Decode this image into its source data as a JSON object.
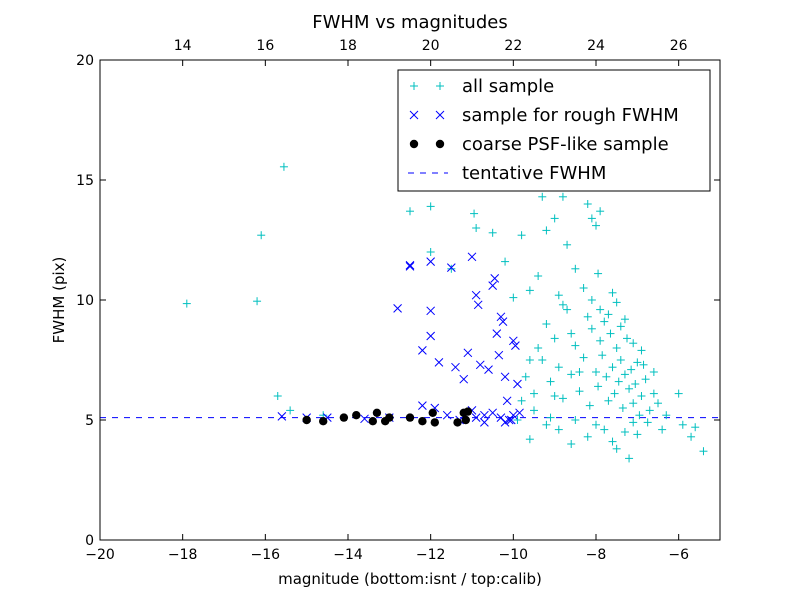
{
  "chart_data": {
    "type": "scatter",
    "title": "FWHM vs magnitudes",
    "xlabel": "magnitude (bottom:isnt / top:calib)",
    "ylabel": "FWHM (pix)",
    "xlim": [
      -20,
      -5
    ],
    "ylim": [
      0,
      20
    ],
    "x_ticks": [
      -20,
      -18,
      -16,
      -14,
      -12,
      -10,
      -8,
      -6
    ],
    "x_tick_labels": [
      "−20",
      "−18",
      "−16",
      "−14",
      "−12",
      "−10",
      "−8",
      "−6"
    ],
    "y_ticks": [
      0,
      5,
      10,
      15,
      20
    ],
    "y_tick_labels": [
      "0",
      "5",
      "10",
      "15",
      "20"
    ],
    "top_axis": {
      "ticks": [
        14,
        16,
        18,
        20,
        22,
        24,
        26
      ],
      "tick_labels": [
        "14",
        "16",
        "18",
        "20",
        "22",
        "24",
        "26"
      ],
      "offset": 32.0
    },
    "grid": false,
    "legend_position": "top-right",
    "series": [
      {
        "name": "all sample",
        "marker": "plus",
        "color": "#00bfbf",
        "points": [
          [
            -17.9,
            9.85
          ],
          [
            -16.2,
            9.95
          ],
          [
            -16.1,
            12.7
          ],
          [
            -15.55,
            15.55
          ],
          [
            -15.7,
            6.0
          ],
          [
            -15.4,
            5.4
          ],
          [
            -14.6,
            5.2
          ],
          [
            -12.5,
            13.7
          ],
          [
            -12.0,
            13.9
          ],
          [
            -12.0,
            12.0
          ],
          [
            -11.5,
            11.3
          ],
          [
            -10.95,
            13.6
          ],
          [
            -10.9,
            13.0
          ],
          [
            -10.5,
            12.8
          ],
          [
            -10.2,
            11.6
          ],
          [
            -10.0,
            10.1
          ],
          [
            -9.8,
            12.7
          ],
          [
            -9.6,
            10.4
          ],
          [
            -9.4,
            11.0
          ],
          [
            -9.3,
            14.3
          ],
          [
            -9.2,
            12.9
          ],
          [
            -9.0,
            13.4
          ],
          [
            -8.9,
            10.2
          ],
          [
            -8.8,
            14.3
          ],
          [
            -8.7,
            12.3
          ],
          [
            -8.5,
            11.3
          ],
          [
            -8.2,
            14.0
          ],
          [
            -8.1,
            13.4
          ],
          [
            -8.0,
            13.1
          ],
          [
            -7.9,
            13.7
          ],
          [
            -7.95,
            11.1
          ],
          [
            -7.6,
            10.3
          ],
          [
            -7.5,
            9.9
          ],
          [
            -9.6,
            4.2
          ],
          [
            -9.9,
            5.0
          ],
          [
            -9.5,
            5.4
          ],
          [
            -9.3,
            7.5
          ],
          [
            -9.2,
            9.0
          ],
          [
            -9.1,
            6.6
          ],
          [
            -9.0,
            8.4
          ],
          [
            -8.9,
            7.2
          ],
          [
            -8.8,
            5.9
          ],
          [
            -8.7,
            9.6
          ],
          [
            -8.6,
            6.9
          ],
          [
            -8.5,
            8.1
          ],
          [
            -8.4,
            6.2
          ],
          [
            -8.3,
            7.6
          ],
          [
            -8.2,
            9.3
          ],
          [
            -8.15,
            5.6
          ],
          [
            -8.1,
            8.8
          ],
          [
            -8.0,
            7.0
          ],
          [
            -7.95,
            6.4
          ],
          [
            -7.9,
            8.3
          ],
          [
            -7.85,
            7.7
          ],
          [
            -7.8,
            9.1
          ],
          [
            -7.75,
            6.8
          ],
          [
            -7.7,
            5.8
          ],
          [
            -7.65,
            8.6
          ],
          [
            -7.6,
            7.2
          ],
          [
            -7.55,
            6.1
          ],
          [
            -7.5,
            8.0
          ],
          [
            -7.45,
            6.6
          ],
          [
            -7.4,
            7.5
          ],
          [
            -7.35,
            5.5
          ],
          [
            -7.3,
            6.9
          ],
          [
            -7.25,
            8.4
          ],
          [
            -7.2,
            6.3
          ],
          [
            -7.15,
            7.1
          ],
          [
            -7.1,
            5.7
          ],
          [
            -7.05,
            6.5
          ],
          [
            -7.0,
            7.4
          ],
          [
            -6.95,
            5.2
          ],
          [
            -6.9,
            6.0
          ],
          [
            -6.8,
            6.7
          ],
          [
            -6.75,
            4.9
          ],
          [
            -6.7,
            5.4
          ],
          [
            -6.6,
            6.1
          ],
          [
            -6.5,
            5.7
          ],
          [
            -6.4,
            4.6
          ],
          [
            -6.3,
            5.2
          ],
          [
            -6.0,
            6.1
          ],
          [
            -5.9,
            4.8
          ],
          [
            -5.7,
            4.3
          ],
          [
            -5.6,
            4.7
          ],
          [
            -5.4,
            3.7
          ],
          [
            -7.6,
            4.1
          ],
          [
            -7.5,
            3.8
          ],
          [
            -7.2,
            3.4
          ],
          [
            -7.0,
            4.4
          ],
          [
            -8.6,
            4.0
          ],
          [
            -8.2,
            4.3
          ],
          [
            -8.4,
            7.0
          ],
          [
            -8.6,
            8.6
          ],
          [
            -8.8,
            9.8
          ],
          [
            -9.0,
            6.0
          ],
          [
            -9.1,
            5.1
          ],
          [
            -9.4,
            8.0
          ],
          [
            -9.7,
            6.8
          ],
          [
            -9.8,
            5.8
          ],
          [
            -8.3,
            10.5
          ],
          [
            -8.1,
            10.0
          ],
          [
            -7.9,
            9.6
          ],
          [
            -7.7,
            9.4
          ],
          [
            -7.4,
            8.9
          ],
          [
            -7.3,
            9.2
          ],
          [
            -7.1,
            8.2
          ],
          [
            -6.9,
            7.9
          ],
          [
            -6.85,
            7.3
          ],
          [
            -6.6,
            7.0
          ],
          [
            -8.5,
            5.0
          ],
          [
            -8.0,
            4.8
          ],
          [
            -7.8,
            4.6
          ],
          [
            -7.3,
            4.5
          ],
          [
            -7.1,
            4.9
          ],
          [
            -8.9,
            4.6
          ],
          [
            -9.2,
            4.8
          ],
          [
            -9.5,
            6.1
          ],
          [
            -9.6,
            7.5
          ]
        ]
      },
      {
        "name": "sample for rough FWHM",
        "marker": "x",
        "color": "#0000ff",
        "points": [
          [
            -15.6,
            5.15
          ],
          [
            -15.0,
            5.1
          ],
          [
            -14.5,
            5.1
          ],
          [
            -13.6,
            5.05
          ],
          [
            -13.0,
            5.1
          ],
          [
            -12.8,
            9.65
          ],
          [
            -12.5,
            11.45
          ],
          [
            -12.5,
            11.4
          ],
          [
            -12.2,
            7.9
          ],
          [
            -12.2,
            5.6
          ],
          [
            -12.0,
            11.6
          ],
          [
            -12.0,
            9.55
          ],
          [
            -12.0,
            8.5
          ],
          [
            -11.9,
            5.5
          ],
          [
            -11.8,
            7.4
          ],
          [
            -11.5,
            11.35
          ],
          [
            -11.4,
            7.2
          ],
          [
            -11.2,
            6.7
          ],
          [
            -11.1,
            7.8
          ],
          [
            -11.0,
            11.8
          ],
          [
            -10.9,
            10.2
          ],
          [
            -10.85,
            9.8
          ],
          [
            -10.8,
            7.3
          ],
          [
            -10.7,
            5.2
          ],
          [
            -10.6,
            7.1
          ],
          [
            -10.5,
            10.6
          ],
          [
            -10.45,
            10.9
          ],
          [
            -10.4,
            8.6
          ],
          [
            -10.35,
            7.7
          ],
          [
            -10.3,
            9.3
          ],
          [
            -10.25,
            9.1
          ],
          [
            -10.2,
            6.8
          ],
          [
            -10.15,
            5.8
          ],
          [
            -10.1,
            5.0
          ],
          [
            -10.05,
            5.0
          ],
          [
            -10.0,
            8.3
          ],
          [
            -9.95,
            8.1
          ],
          [
            -9.9,
            6.5
          ],
          [
            -9.85,
            5.3
          ],
          [
            -11.3,
            5.0
          ],
          [
            -11.0,
            5.4
          ],
          [
            -10.9,
            5.1
          ],
          [
            -10.7,
            4.9
          ],
          [
            -10.5,
            5.3
          ],
          [
            -10.3,
            5.1
          ],
          [
            -10.2,
            4.9
          ],
          [
            -10.0,
            5.2
          ],
          [
            -11.6,
            5.2
          ]
        ]
      },
      {
        "name": "coarse PSF-like sample",
        "marker": "dot",
        "color": "#000000",
        "points": [
          [
            -15.0,
            5.0
          ],
          [
            -14.6,
            4.95
          ],
          [
            -14.1,
            5.1
          ],
          [
            -13.8,
            5.2
          ],
          [
            -13.4,
            4.95
          ],
          [
            -13.3,
            5.3
          ],
          [
            -13.1,
            4.95
          ],
          [
            -13.0,
            5.1
          ],
          [
            -12.5,
            5.1
          ],
          [
            -12.2,
            4.95
          ],
          [
            -11.95,
            5.3
          ],
          [
            -11.9,
            4.9
          ],
          [
            -11.35,
            4.9
          ],
          [
            -11.2,
            5.3
          ],
          [
            -11.15,
            5.0
          ],
          [
            -11.1,
            5.35
          ]
        ]
      }
    ],
    "reference_lines": [
      {
        "name": "tentative FWHM",
        "orientation": "horizontal",
        "y": 5.1,
        "style": "dashed",
        "color": "#0000ff"
      }
    ]
  }
}
